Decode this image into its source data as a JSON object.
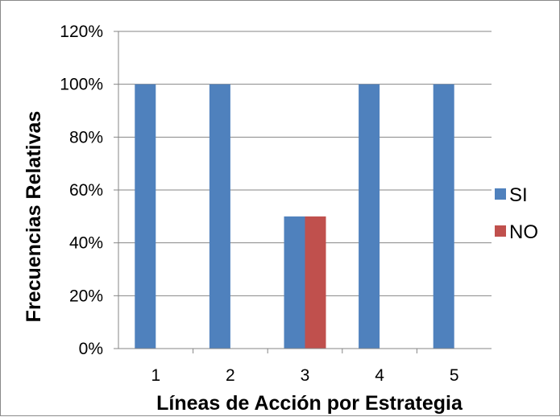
{
  "chart_data": {
    "type": "bar",
    "categories": [
      "1",
      "2",
      "3",
      "4",
      "5"
    ],
    "series": [
      {
        "name": "SI",
        "values": [
          100,
          100,
          50,
          100,
          100
        ],
        "color": "#4F81BD"
      },
      {
        "name": "NO",
        "values": [
          0,
          0,
          50,
          0,
          0
        ],
        "color": "#C0504D"
      }
    ],
    "xlabel": "Líneas de Acción por Estrategia",
    "ylabel": "Frecuencias Relativas",
    "ylim": [
      0,
      120
    ],
    "yticks": [
      0,
      20,
      40,
      60,
      80,
      100,
      120
    ],
    "ytick_labels": [
      "0%",
      "20%",
      "40%",
      "60%",
      "80%",
      "100%",
      "120%"
    ],
    "grid": "horizontal",
    "legend_position": "right"
  }
}
